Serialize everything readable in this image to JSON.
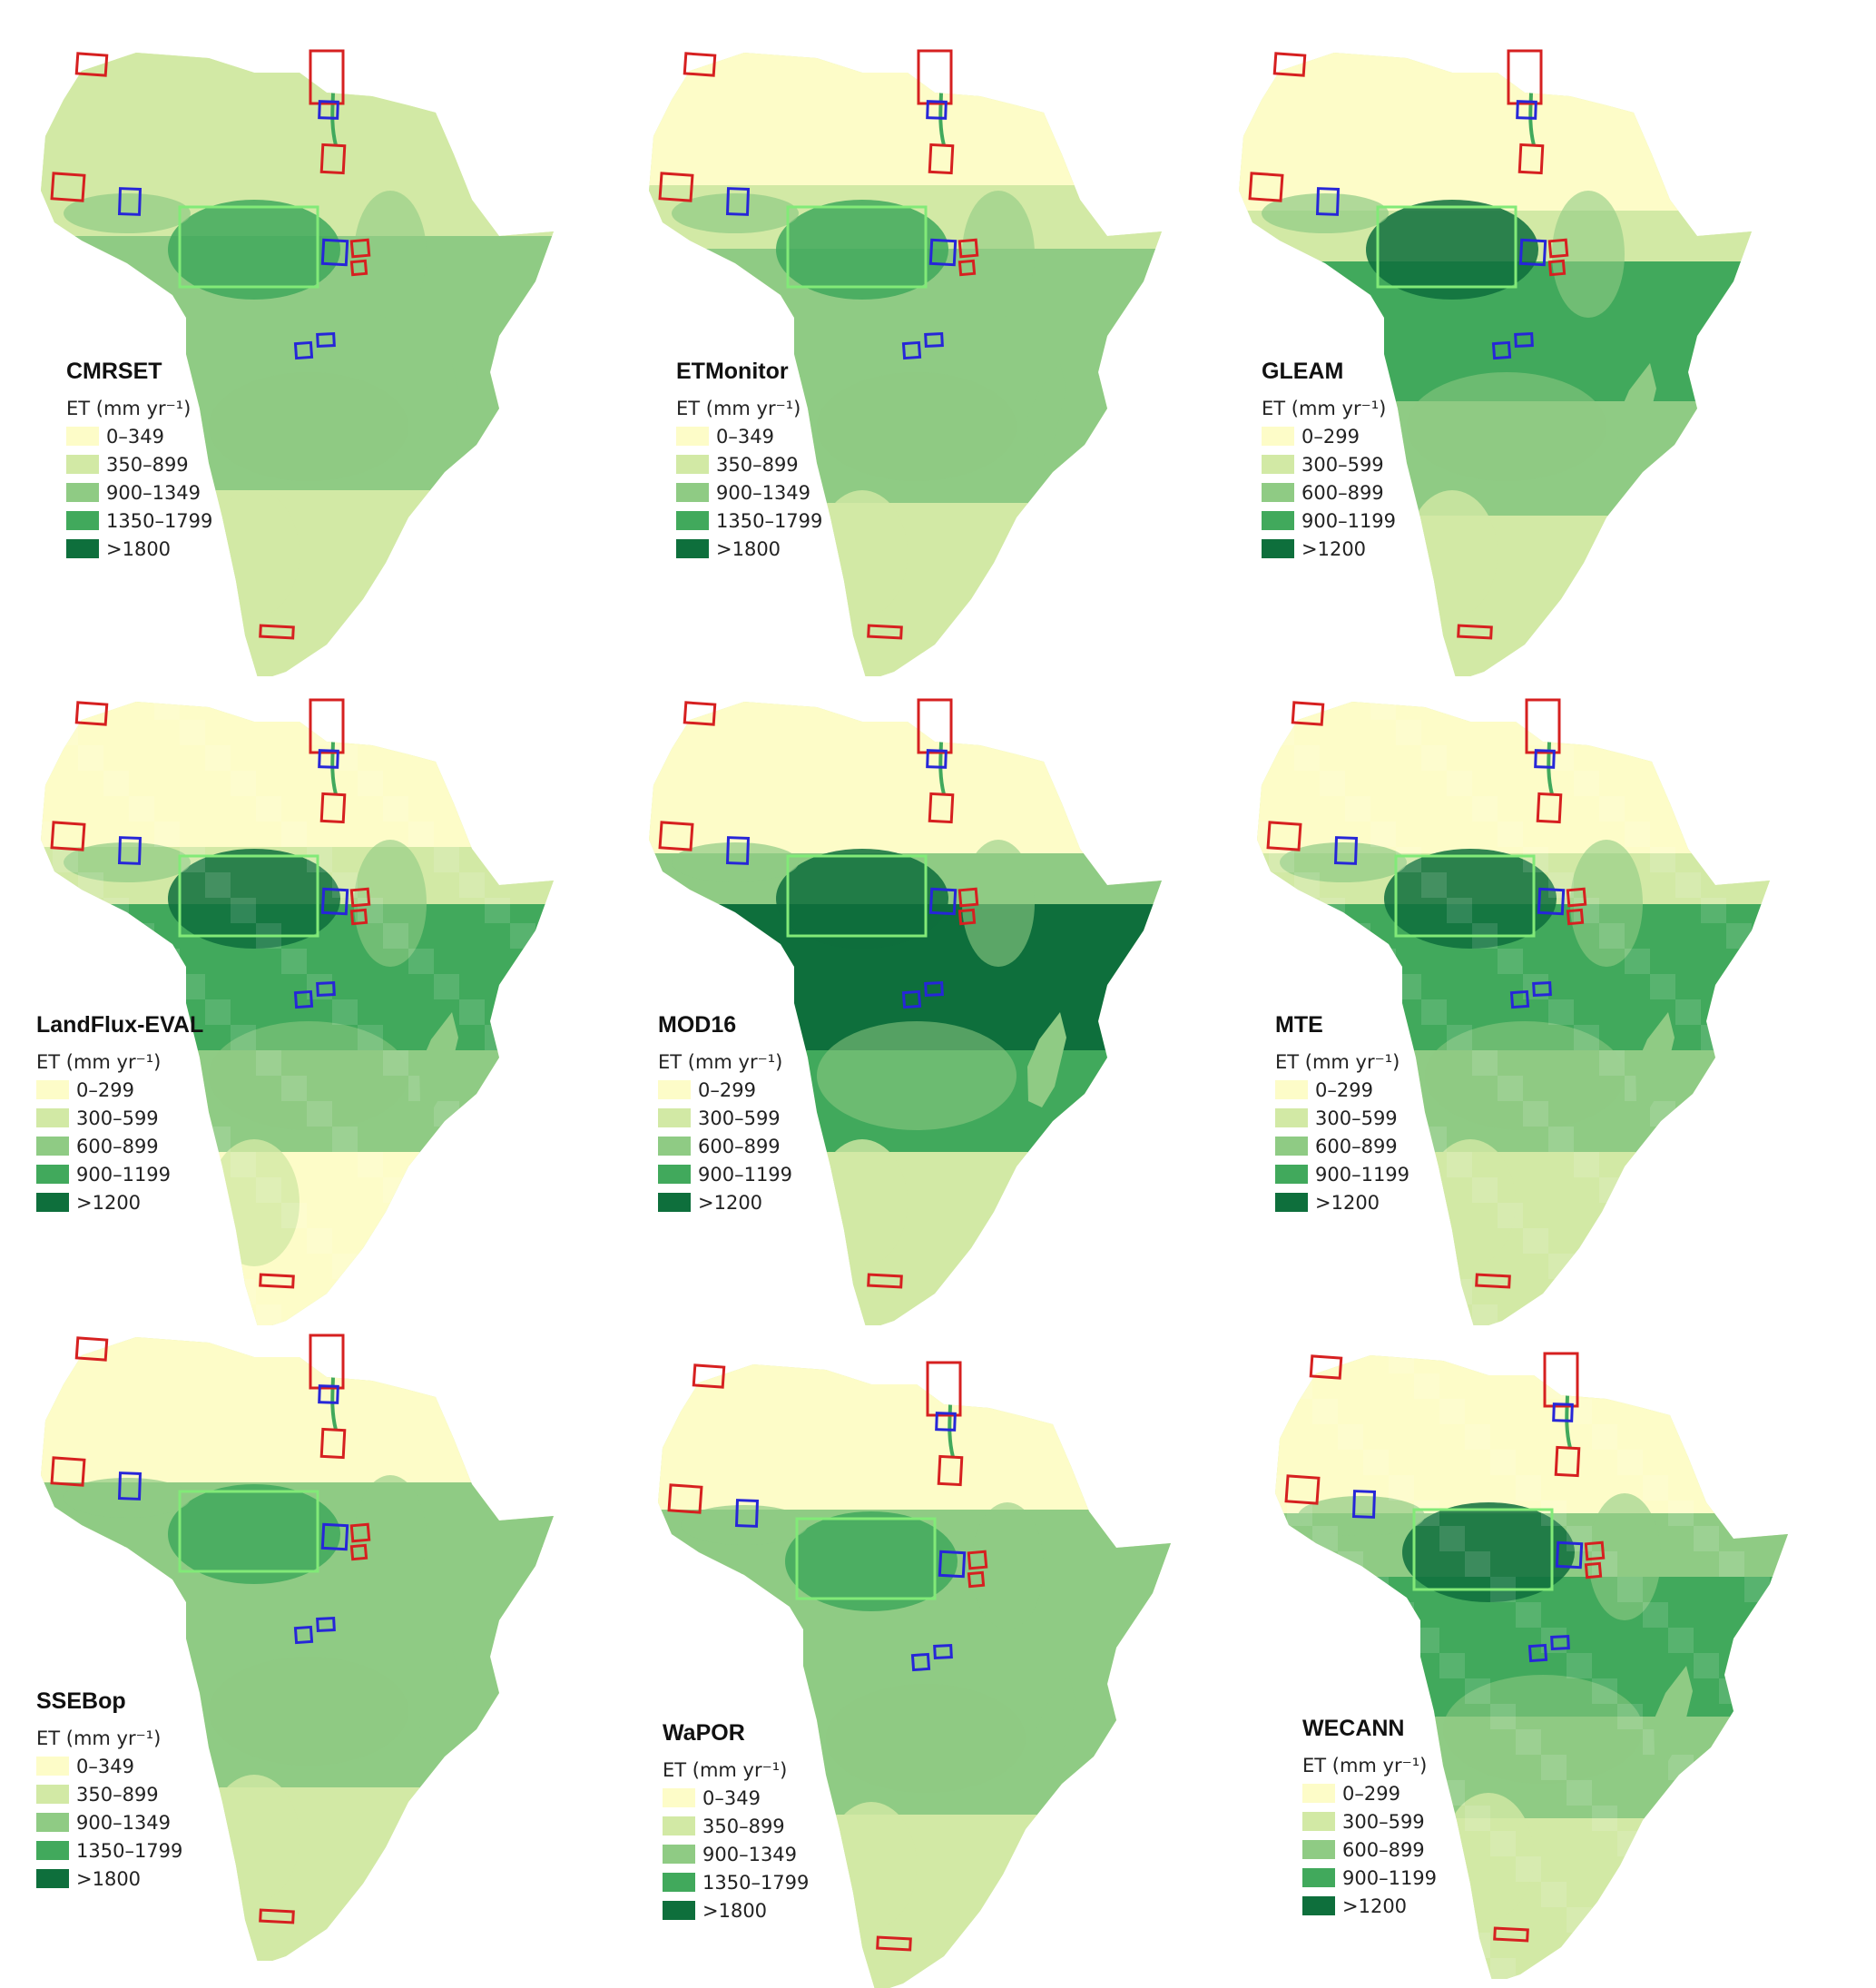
{
  "legend_title": "ET (mm yr⁻¹)",
  "colors": {
    "class1": "#fdfcc8",
    "class2": "#d2e9a5",
    "class3": "#8fcb84",
    "class4": "#41a95c",
    "class5": "#0e6f3c",
    "red_box": "#d62020",
    "blue_box": "#2626d8",
    "green_box": "#82ea78"
  },
  "legend_sets": {
    "A": [
      "0–349",
      "350–899",
      "900–1349",
      "1350–1799",
      ">1800"
    ],
    "B": [
      "0–299",
      "300–599",
      "600–899",
      "900–1199",
      ">1200"
    ]
  },
  "panels": [
    {
      "name": "CMRSET",
      "legend": [
        "0–349",
        "350–899",
        "900–1349",
        "1350–1799",
        ">1800"
      ]
    },
    {
      "name": "ETMonitor",
      "legend": [
        "0–349",
        "350–899",
        "900–1349",
        "1350–1799",
        ">1800"
      ]
    },
    {
      "name": "GLEAM",
      "legend": [
        "0–299",
        "300–599",
        "600–899",
        "900–1199",
        ">1200"
      ]
    },
    {
      "name": "LandFlux-EVAL",
      "legend": [
        "0–299",
        "300–599",
        "600–899",
        "900–1199",
        ">1200"
      ]
    },
    {
      "name": "MOD16",
      "legend": [
        "0–299",
        "300–599",
        "600–899",
        "900–1199",
        ">1200"
      ]
    },
    {
      "name": "MTE",
      "legend": [
        "0–299",
        "300–599",
        "600–899",
        "900–1199",
        ">1200"
      ]
    },
    {
      "name": "SSEBop",
      "legend": [
        "0–349",
        "350–899",
        "900–1349",
        "1350–1799",
        ">1800"
      ]
    },
    {
      "name": "WaPOR",
      "legend": [
        "0–349",
        "350–899",
        "900–1349",
        "1350–1799",
        ">1800"
      ]
    },
    {
      "name": "WECANN",
      "legend": [
        "0–299",
        "300–599",
        "600–899",
        "900–1199",
        ">1200"
      ]
    }
  ]
}
